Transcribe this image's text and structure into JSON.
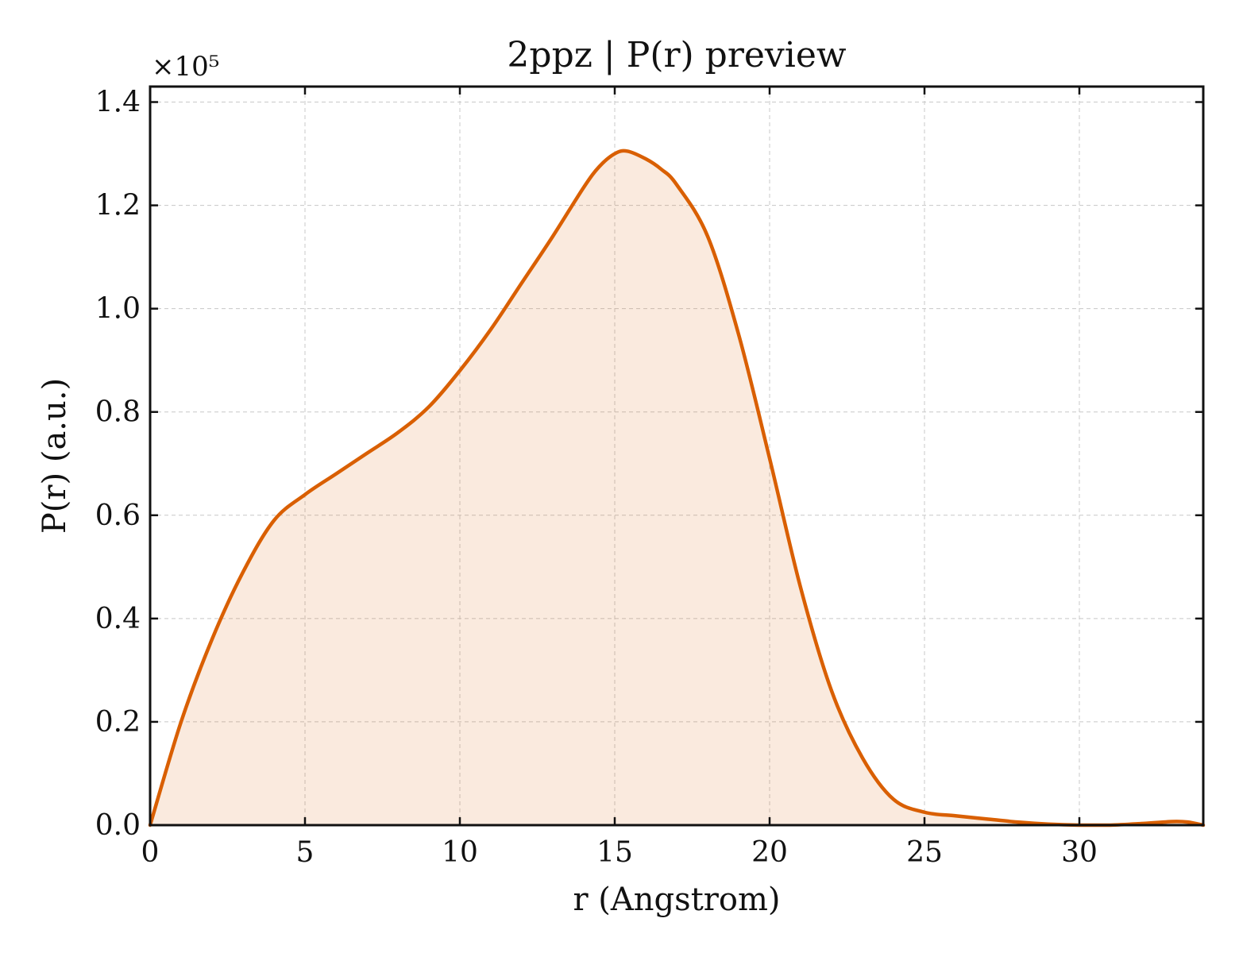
{
  "chart_data": {
    "type": "area",
    "title": "2ppz | P(r) preview",
    "xlabel": "r (Angstrom)",
    "ylabel": "P(r) (a.u.)",
    "y_offset_label": "×10⁵",
    "y_scale": 100000,
    "xlim": [
      0,
      34
    ],
    "ylim": [
      0,
      1.43
    ],
    "xticks": [
      0,
      5,
      10,
      15,
      20,
      25,
      30
    ],
    "xtick_labels": [
      "0",
      "5",
      "10",
      "15",
      "20",
      "25",
      "30"
    ],
    "yticks": [
      0.0,
      0.2,
      0.4,
      0.6,
      0.8,
      1.0,
      1.2,
      1.4
    ],
    "ytick_labels": [
      "0.0",
      "0.2",
      "0.4",
      "0.6",
      "0.8",
      "1.0",
      "1.2",
      "1.4"
    ],
    "grid": true,
    "line_color": "#d95f02",
    "fill_color": "#d95f02",
    "fill_opacity": 0.13,
    "series": [
      {
        "x": [
          0,
          1,
          2,
          3,
          4,
          5,
          6,
          7,
          8,
          9,
          10,
          11,
          12,
          13,
          14,
          14.5,
          15,
          15.4,
          16,
          16.5,
          17,
          18,
          19,
          20,
          21,
          22,
          23,
          24,
          25,
          26,
          27,
          28,
          29,
          30,
          31,
          32,
          33,
          33.5,
          34
        ],
        "y": [
          0.0,
          0.2,
          0.36,
          0.49,
          0.59,
          0.64,
          0.68,
          0.72,
          0.76,
          0.81,
          0.88,
          0.96,
          1.05,
          1.14,
          1.235,
          1.275,
          1.3,
          1.305,
          1.29,
          1.27,
          1.24,
          1.14,
          0.95,
          0.71,
          0.46,
          0.26,
          0.13,
          0.05,
          0.025,
          0.018,
          0.012,
          0.006,
          0.002,
          0.0,
          0.0,
          0.003,
          0.007,
          0.006,
          0.0
        ]
      }
    ]
  }
}
